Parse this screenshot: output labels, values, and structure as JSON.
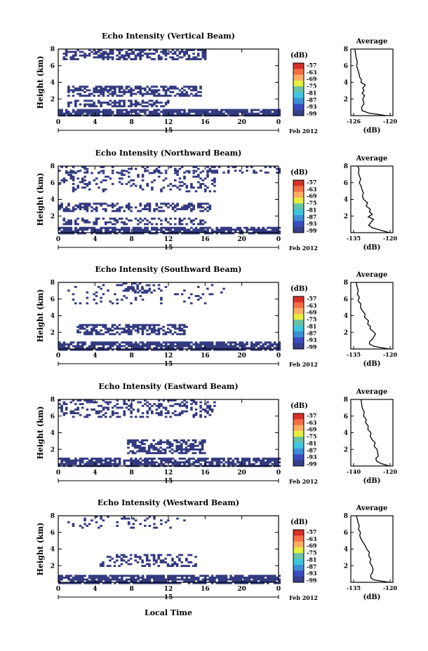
{
  "figure": {
    "xlabel_bottom": "Local Time",
    "date_label": "Feb 2012",
    "day_label": "15",
    "colorbar_unit": "(dB)",
    "average_title": "Average",
    "average_xlabel": "(dB)"
  },
  "chart_data": [
    {
      "type": "heatmap",
      "title": "Echo Intensity (Vertical Beam)",
      "ylabel": "Height (km)",
      "xlabel": "Local Time",
      "x_ticks": [
        "0",
        "4",
        "8",
        "12",
        "16",
        "20",
        "0"
      ],
      "y_ticks": [
        "2",
        "4",
        "6",
        "8"
      ],
      "xlim": [
        0,
        24
      ],
      "ylim": [
        0,
        8
      ],
      "colorbar": {
        "ticks": [
          "-57",
          "-63",
          "-69",
          "-75",
          "-81",
          "-87",
          "-93",
          "-99"
        ],
        "range": [
          -99,
          -57
        ]
      },
      "layers": [
        {
          "y": [
            6.8,
            8.0
          ],
          "x": [
            0.5,
            16.0
          ],
          "density": 0.55
        },
        {
          "y": [
            2.3,
            3.6
          ],
          "x": [
            1.0,
            15.5
          ],
          "density": 0.6
        },
        {
          "y": [
            1.2,
            1.9
          ],
          "x": [
            1.0,
            12.0
          ],
          "density": 0.5
        },
        {
          "y": [
            0.0,
            0.8
          ],
          "x": [
            0.0,
            24.0
          ],
          "density": 0.85
        }
      ],
      "average": {
        "xlim": [
          -126,
          -120
        ],
        "xticks": [
          "-126",
          "-120"
        ],
        "height_ticks": [
          "2",
          "4",
          "6",
          "8"
        ],
        "profile": [
          [
            0.0,
            -120.6
          ],
          [
            0.3,
            -123.5
          ],
          [
            0.6,
            -124.6
          ],
          [
            1.0,
            -124.7
          ],
          [
            1.4,
            -124.3
          ],
          [
            1.7,
            -124.4
          ],
          [
            2.0,
            -124.5
          ],
          [
            2.4,
            -124.2
          ],
          [
            2.7,
            -124.6
          ],
          [
            3.0,
            -124.3
          ],
          [
            3.3,
            -124.5
          ],
          [
            3.7,
            -124.1
          ],
          [
            4.0,
            -124.8
          ],
          [
            4.3,
            -124.7
          ],
          [
            4.6,
            -125.0
          ],
          [
            5.0,
            -125.1
          ],
          [
            5.5,
            -125.3
          ],
          [
            6.0,
            -125.5
          ],
          [
            6.5,
            -125.4
          ],
          [
            7.0,
            -125.6
          ],
          [
            7.5,
            -125.7
          ],
          [
            8.0,
            -125.8
          ]
        ]
      }
    },
    {
      "type": "heatmap",
      "title": "Echo Intensity (Northward Beam)",
      "ylabel": "Height (km)",
      "xlabel": "Local Time",
      "x_ticks": [
        "0",
        "4",
        "8",
        "12",
        "16",
        "20",
        "0"
      ],
      "y_ticks": [
        "2",
        "4",
        "6",
        "8"
      ],
      "xlim": [
        0,
        24
      ],
      "ylim": [
        0,
        8
      ],
      "colorbar": {
        "ticks": [
          "-57",
          "-63",
          "-69",
          "-75",
          "-81",
          "-87",
          "-93",
          "-99"
        ],
        "range": [
          -99,
          -57
        ]
      },
      "layers": [
        {
          "y": [
            7.3,
            8.0
          ],
          "x": [
            0.0,
            24.0
          ],
          "density": 0.25
        },
        {
          "y": [
            5.0,
            7.5
          ],
          "x": [
            0.0,
            17.0
          ],
          "density": 0.2
        },
        {
          "y": [
            2.6,
            3.6
          ],
          "x": [
            0.0,
            16.5
          ],
          "density": 0.55
        },
        {
          "y": [
            1.0,
            1.8
          ],
          "x": [
            0.5,
            16.0
          ],
          "density": 0.4
        },
        {
          "y": [
            0.0,
            0.7
          ],
          "x": [
            0.0,
            24.0
          ],
          "density": 0.8
        }
      ],
      "average": {
        "xlim": [
          -135,
          -120
        ],
        "xticks": [
          "-135",
          "-120"
        ],
        "height_ticks": [
          "2",
          "4",
          "6",
          "8"
        ],
        "profile": [
          [
            0.0,
            -120.3
          ],
          [
            0.3,
            -124.0
          ],
          [
            0.6,
            -127.5
          ],
          [
            0.9,
            -128.8
          ],
          [
            1.2,
            -128.0
          ],
          [
            1.6,
            -126.8
          ],
          [
            1.9,
            -129.0
          ],
          [
            2.2,
            -127.3
          ],
          [
            2.5,
            -128.5
          ],
          [
            2.8,
            -128.1
          ],
          [
            3.2,
            -129.8
          ],
          [
            3.6,
            -129.3
          ],
          [
            4.0,
            -130.9
          ],
          [
            4.4,
            -131.4
          ],
          [
            4.8,
            -131.0
          ],
          [
            5.2,
            -131.6
          ],
          [
            5.6,
            -131.9
          ],
          [
            6.0,
            -132.7
          ],
          [
            6.4,
            -132.1
          ],
          [
            6.8,
            -132.6
          ],
          [
            7.2,
            -133.0
          ],
          [
            7.6,
            -132.8
          ],
          [
            8.0,
            -133.2
          ]
        ]
      }
    },
    {
      "type": "heatmap",
      "title": "Echo Intensity (Southward Beam)",
      "ylabel": "Height (km)",
      "xlabel": "Local Time",
      "x_ticks": [
        "0",
        "4",
        "8",
        "12",
        "16",
        "20",
        "0"
      ],
      "y_ticks": [
        "2",
        "4",
        "6",
        "8"
      ],
      "xlim": [
        0,
        24
      ],
      "ylim": [
        0,
        8
      ],
      "colorbar": {
        "ticks": [
          "-57",
          "-63",
          "-69",
          "-75",
          "-81",
          "-87",
          "-93",
          "-99"
        ],
        "range": [
          -99,
          -57
        ]
      },
      "layers": [
        {
          "y": [
            6.8,
            8.0
          ],
          "x": [
            7.0,
            10.5
          ],
          "density": 0.45
        },
        {
          "y": [
            5.5,
            7.8
          ],
          "x": [
            1.0,
            18.0
          ],
          "density": 0.08
        },
        {
          "y": [
            1.8,
            3.0
          ],
          "x": [
            2.0,
            14.0
          ],
          "density": 0.55
        },
        {
          "y": [
            0.0,
            0.9
          ],
          "x": [
            0.0,
            24.0
          ],
          "density": 0.8
        }
      ],
      "average": {
        "xlim": [
          -135,
          -120
        ],
        "xticks": [
          "-135",
          "-120"
        ],
        "height_ticks": [
          "2",
          "4",
          "6",
          "8"
        ],
        "profile": [
          [
            0.0,
            -120.4
          ],
          [
            0.3,
            -126.5
          ],
          [
            0.6,
            -128.5
          ],
          [
            0.9,
            -128.4
          ],
          [
            1.2,
            -127.2
          ],
          [
            1.5,
            -126.6
          ],
          [
            1.8,
            -126.0
          ],
          [
            2.1,
            -126.9
          ],
          [
            2.4,
            -128.2
          ],
          [
            2.7,
            -128.1
          ],
          [
            3.0,
            -129.2
          ],
          [
            3.4,
            -128.9
          ],
          [
            3.8,
            -130.5
          ],
          [
            4.2,
            -130.3
          ],
          [
            4.6,
            -131.4
          ],
          [
            5.0,
            -132.2
          ],
          [
            5.4,
            -132.0
          ],
          [
            5.8,
            -133.2
          ],
          [
            6.2,
            -132.6
          ],
          [
            6.6,
            -133.5
          ],
          [
            7.0,
            -133.1
          ],
          [
            7.5,
            -133.6
          ],
          [
            8.0,
            -133.9
          ]
        ]
      }
    },
    {
      "type": "heatmap",
      "title": "Echo Intensity (Eastward Beam)",
      "ylabel": "Height (km)",
      "xlabel": "Local Time",
      "x_ticks": [
        "0",
        "4",
        "8",
        "12",
        "16",
        "20",
        "0"
      ],
      "y_ticks": [
        "2",
        "4",
        "6",
        "8"
      ],
      "xlim": [
        0,
        24
      ],
      "ylim": [
        0,
        8
      ],
      "colorbar": {
        "ticks": [
          "-57",
          "-63",
          "-69",
          "-75",
          "-81",
          "-87",
          "-93",
          "-99"
        ],
        "range": [
          -99,
          -57
        ]
      },
      "layers": [
        {
          "y": [
            6.0,
            8.0
          ],
          "x": [
            0.0,
            17.0
          ],
          "density": 0.3
        },
        {
          "y": [
            1.5,
            3.2
          ],
          "x": [
            7.5,
            16.0
          ],
          "density": 0.6
        },
        {
          "y": [
            0.0,
            1.0
          ],
          "x": [
            0.0,
            24.0
          ],
          "density": 0.75
        }
      ],
      "average": {
        "xlim": [
          -140,
          -120
        ],
        "xticks": [
          "-140",
          "-120"
        ],
        "height_ticks": [
          "2",
          "4",
          "6",
          "8"
        ],
        "profile": [
          [
            0.0,
            -120.5
          ],
          [
            0.3,
            -125.0
          ],
          [
            0.6,
            -127.5
          ],
          [
            0.9,
            -127.8
          ],
          [
            1.2,
            -126.5
          ],
          [
            1.6,
            -126.8
          ],
          [
            2.0,
            -127.2
          ],
          [
            2.4,
            -128.8
          ],
          [
            2.8,
            -128.2
          ],
          [
            3.2,
            -130.0
          ],
          [
            3.6,
            -130.9
          ],
          [
            4.0,
            -130.5
          ],
          [
            4.4,
            -132.2
          ],
          [
            4.8,
            -132.0
          ],
          [
            5.2,
            -133.4
          ],
          [
            5.6,
            -133.1
          ],
          [
            6.0,
            -134.5
          ],
          [
            6.5,
            -134.2
          ],
          [
            7.0,
            -135.3
          ],
          [
            7.5,
            -135.6
          ],
          [
            8.0,
            -136.0
          ]
        ]
      }
    },
    {
      "type": "heatmap",
      "title": "Echo Intensity (Westward Beam)",
      "ylabel": "Height (km)",
      "xlabel": "Local Time",
      "x_ticks": [
        "0",
        "4",
        "8",
        "12",
        "16",
        "20",
        "0"
      ],
      "y_ticks": [
        "2",
        "4",
        "6",
        "8"
      ],
      "xlim": [
        0,
        24
      ],
      "ylim": [
        0,
        8
      ],
      "colorbar": {
        "ticks": [
          "-57",
          "-63",
          "-69",
          "-75",
          "-81",
          "-87",
          "-93",
          "-99"
        ],
        "range": [
          -99,
          -57
        ]
      },
      "layers": [
        {
          "y": [
            6.5,
            8.0
          ],
          "x": [
            0.5,
            14.0
          ],
          "density": 0.1
        },
        {
          "y": [
            2.0,
            3.4
          ],
          "x": [
            4.5,
            15.0
          ],
          "density": 0.35
        },
        {
          "y": [
            0.0,
            0.9
          ],
          "x": [
            0.0,
            24.0
          ],
          "density": 0.8
        }
      ],
      "average": {
        "xlim": [
          -135,
          -120
        ],
        "xticks": [
          "-135",
          "-120"
        ],
        "height_ticks": [
          "2",
          "4",
          "6",
          "8"
        ],
        "profile": [
          [
            0.0,
            -120.4
          ],
          [
            0.3,
            -126.8
          ],
          [
            0.6,
            -128.0
          ],
          [
            0.9,
            -127.9
          ],
          [
            1.2,
            -127.2
          ],
          [
            1.6,
            -127.0
          ],
          [
            2.0,
            -127.5
          ],
          [
            2.4,
            -128.4
          ],
          [
            2.8,
            -127.9
          ],
          [
            3.2,
            -128.8
          ],
          [
            3.6,
            -128.5
          ],
          [
            4.0,
            -129.6
          ],
          [
            4.4,
            -130.2
          ],
          [
            4.8,
            -131.1
          ],
          [
            5.2,
            -131.9
          ],
          [
            5.6,
            -132.5
          ],
          [
            6.0,
            -132.2
          ],
          [
            6.4,
            -133.0
          ],
          [
            6.8,
            -132.7
          ],
          [
            7.2,
            -133.2
          ],
          [
            7.6,
            -133.5
          ],
          [
            8.0,
            -133.8
          ]
        ]
      }
    }
  ]
}
